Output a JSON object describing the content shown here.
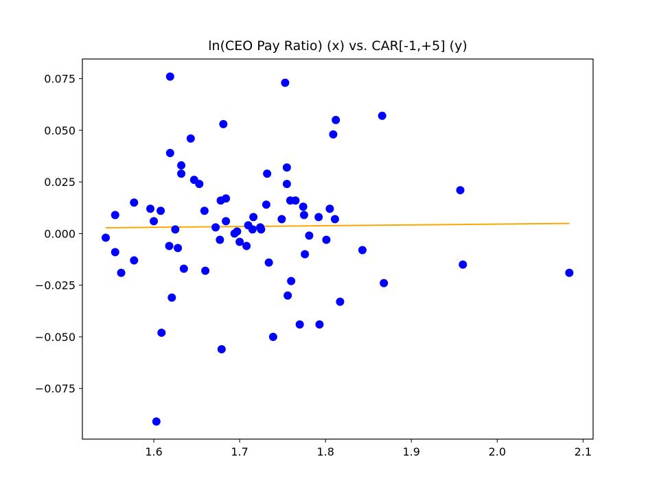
{
  "chart_data": {
    "type": "scatter",
    "title": "ln(CEO Pay Ratio) (x) vs. CAR[-1,+5] (y)",
    "xlabel": "",
    "ylabel": "",
    "xlim": [
      1.5168,
      2.1117
    ],
    "ylim": [
      -0.0995,
      0.0845
    ],
    "grid": false,
    "xticks": [
      1.6,
      1.7,
      1.8,
      1.9,
      2.0,
      2.1
    ],
    "xtick_labels": [
      "1.6",
      "1.7",
      "1.8",
      "1.9",
      "2.0",
      "2.1"
    ],
    "yticks": [
      -0.075,
      -0.05,
      -0.025,
      0.0,
      0.025,
      0.05,
      0.075
    ],
    "ytick_labels": [
      "−0.075",
      "−0.050",
      "−0.025",
      "0.000",
      "0.025",
      "0.050",
      "0.075"
    ],
    "series": [
      {
        "kind": "scatter",
        "color": "#0000ff",
        "points": [
          [
            1.544,
            -0.002
          ],
          [
            1.555,
            0.009
          ],
          [
            1.555,
            -0.009
          ],
          [
            1.562,
            -0.019
          ],
          [
            1.577,
            0.015
          ],
          [
            1.577,
            -0.013
          ],
          [
            1.596,
            0.012
          ],
          [
            1.6,
            0.006
          ],
          [
            1.603,
            -0.091
          ],
          [
            1.608,
            0.011
          ],
          [
            1.609,
            -0.048
          ],
          [
            1.618,
            -0.006
          ],
          [
            1.619,
            0.076
          ],
          [
            1.619,
            0.039
          ],
          [
            1.621,
            -0.031
          ],
          [
            1.625,
            0.002
          ],
          [
            1.628,
            -0.007
          ],
          [
            1.632,
            0.033
          ],
          [
            1.632,
            0.029
          ],
          [
            1.635,
            -0.017
          ],
          [
            1.643,
            0.046
          ],
          [
            1.647,
            0.026
          ],
          [
            1.653,
            0.024
          ],
          [
            1.659,
            0.011
          ],
          [
            1.66,
            -0.018
          ],
          [
            1.672,
            0.003
          ],
          [
            1.677,
            -0.003
          ],
          [
            1.678,
            0.016
          ],
          [
            1.679,
            -0.056
          ],
          [
            1.681,
            0.053
          ],
          [
            1.684,
            0.017
          ],
          [
            1.684,
            0.006
          ],
          [
            1.694,
            0.0
          ],
          [
            1.697,
            0.001
          ],
          [
            1.7,
            -0.004
          ],
          [
            1.708,
            -0.006
          ],
          [
            1.71,
            0.004
          ],
          [
            1.715,
            0.002
          ],
          [
            1.716,
            0.008
          ],
          [
            1.724,
            0.003
          ],
          [
            1.725,
            0.002
          ],
          [
            1.731,
            0.014
          ],
          [
            1.732,
            0.029
          ],
          [
            1.734,
            -0.014
          ],
          [
            1.739,
            -0.05
          ],
          [
            1.749,
            0.007
          ],
          [
            1.753,
            0.073
          ],
          [
            1.755,
            0.032
          ],
          [
            1.755,
            0.024
          ],
          [
            1.756,
            -0.03
          ],
          [
            1.759,
            0.016
          ],
          [
            1.76,
            -0.023
          ],
          [
            1.765,
            0.016
          ],
          [
            1.77,
            -0.044
          ],
          [
            1.774,
            0.013
          ],
          [
            1.775,
            0.009
          ],
          [
            1.776,
            -0.01
          ],
          [
            1.781,
            -0.001
          ],
          [
            1.792,
            0.008
          ],
          [
            1.793,
            -0.044
          ],
          [
            1.801,
            -0.003
          ],
          [
            1.805,
            0.012
          ],
          [
            1.809,
            0.048
          ],
          [
            1.811,
            0.007
          ],
          [
            1.812,
            0.055
          ],
          [
            1.817,
            -0.033
          ],
          [
            1.843,
            -0.008
          ],
          [
            1.866,
            0.057
          ],
          [
            1.868,
            -0.024
          ],
          [
            1.957,
            0.021
          ],
          [
            1.96,
            -0.015
          ],
          [
            2.084,
            -0.019
          ]
        ]
      },
      {
        "kind": "line",
        "color": "#ffa500",
        "points": [
          [
            1.544,
            0.0028
          ],
          [
            2.084,
            0.0049
          ]
        ]
      }
    ]
  }
}
